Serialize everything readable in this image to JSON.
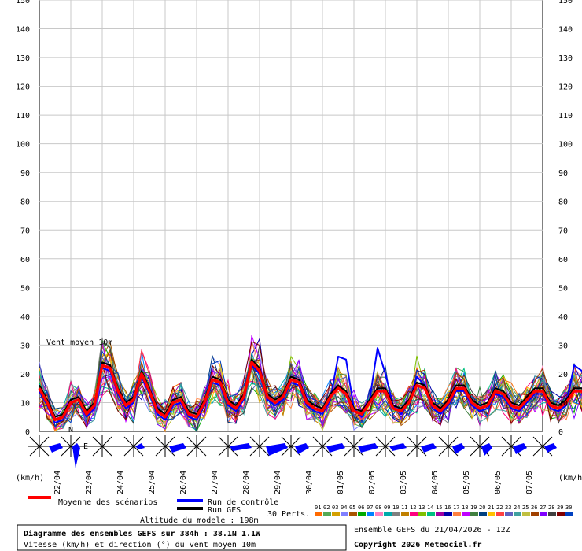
{
  "chart_data": {
    "type": "line",
    "title": "Vent moyen 10m",
    "unit_left": "(km/h)",
    "unit_right": "(km/h)",
    "ylim": [
      0,
      150
    ],
    "yticks": [
      0,
      10,
      20,
      30,
      40,
      50,
      60,
      70,
      80,
      90,
      100,
      110,
      120,
      130,
      140,
      150
    ],
    "date_labels": [
      "22/04",
      "23/04",
      "24/04",
      "25/04",
      "26/04",
      "27/04",
      "28/04",
      "29/04",
      "30/04",
      "01/05",
      "02/05",
      "03/05",
      "04/05",
      "05/05",
      "06/05",
      "07/05"
    ],
    "hours_per_step": 6,
    "series": [
      {
        "name": "Moyenne des scénarios",
        "color": "#ff0000",
        "values": [
          15,
          10,
          4,
          5,
          10,
          11,
          6,
          9,
          23,
          22,
          14,
          9,
          11,
          20,
          14,
          7,
          5,
          10,
          11,
          6,
          5,
          10,
          18,
          17,
          10,
          8,
          12,
          24,
          21,
          12,
          10,
          12,
          18,
          17,
          10,
          8,
          7,
          12,
          15,
          13,
          7,
          6,
          10,
          14,
          14,
          8,
          7,
          10,
          16,
          15,
          9,
          7,
          10,
          15,
          15,
          10,
          8,
          9,
          14,
          13,
          9,
          8,
          11,
          14,
          14,
          9,
          8,
          10,
          14,
          14,
          9,
          8,
          11,
          14,
          14,
          9,
          8,
          10,
          14,
          12,
          8
        ]
      },
      {
        "name": "Run de contrôle",
        "color": "#0000ff",
        "values": [
          14,
          9,
          3,
          4,
          10,
          11,
          5,
          8,
          22,
          21,
          13,
          8,
          10,
          19,
          13,
          6,
          4,
          9,
          10,
          5,
          4,
          9,
          17,
          16,
          9,
          7,
          11,
          23,
          20,
          11,
          9,
          11,
          17,
          16,
          9,
          7,
          6,
          11,
          26,
          25,
          8,
          5,
          11,
          29,
          20,
          9,
          6,
          10,
          19,
          16,
          8,
          6,
          9,
          14,
          14,
          9,
          7,
          8,
          13,
          12,
          8,
          7,
          10,
          13,
          13,
          8,
          7,
          9,
          23,
          21,
          8,
          7,
          10,
          13,
          13,
          8,
          7,
          9,
          13,
          11,
          7
        ]
      },
      {
        "name": "Run GFS",
        "color": "#000000",
        "values": [
          16,
          11,
          5,
          6,
          11,
          12,
          7,
          10,
          24,
          23,
          15,
          10,
          12,
          21,
          15,
          8,
          6,
          11,
          12,
          7,
          6,
          11,
          19,
          18,
          11,
          9,
          13,
          25,
          22,
          13,
          11,
          13,
          19,
          18,
          11,
          9,
          8,
          13,
          16,
          14,
          8,
          7,
          11,
          15,
          15,
          9,
          8,
          11,
          17,
          16,
          10,
          8,
          11,
          16,
          16,
          11,
          9,
          10,
          15,
          14,
          10,
          9,
          12,
          15,
          15,
          10,
          9,
          11,
          15,
          15,
          10,
          9,
          12,
          15,
          15,
          10,
          9,
          11,
          15,
          13,
          9
        ]
      }
    ],
    "direction_labels": [
      "N",
      "E"
    ]
  },
  "legend": {
    "mean": "Moyenne des scénarios",
    "control": "Run de contrôle",
    "gfs": "Run GFS",
    "perts_label": "30 Perts.",
    "pert_numbers": [
      "01",
      "02",
      "03",
      "04",
      "05",
      "06",
      "07",
      "08",
      "09",
      "10",
      "11",
      "12",
      "13",
      "14",
      "15",
      "16",
      "17",
      "18",
      "19",
      "20",
      "21",
      "22",
      "23",
      "24",
      "25",
      "26",
      "27",
      "28",
      "29",
      "30"
    ],
    "pert_colors": [
      "#ff6a00",
      "#55aa55",
      "#d4a000",
      "#8080ff",
      "#aa5500",
      "#00aa00",
      "#0080ff",
      "#ff80c0",
      "#00aaaa",
      "#808080",
      "#c08000",
      "#ff0080",
      "#80c000",
      "#00c080",
      "#a000a0",
      "#0000aa",
      "#ff8040",
      "#c000ff",
      "#408040",
      "#004080",
      "#ffc000",
      "#ff4040",
      "#6060c0",
      "#40a0a0",
      "#c0c040",
      "#a04000",
      "#8000ff",
      "#404040",
      "#800000",
      "#0040c0"
    ],
    "altitude": "Altitude du modele : 198m"
  },
  "footer": {
    "title": "Diagramme des ensembles GEFS sur 384h : 38.1N 1.1W",
    "subtitle": "Vitesse (km/h) et direction (°) du vent moyen 10m",
    "run_info": "Ensemble GEFS du 21/04/2026 - 12Z",
    "copyright": "Copyright 2026 Meteociel.fr"
  }
}
